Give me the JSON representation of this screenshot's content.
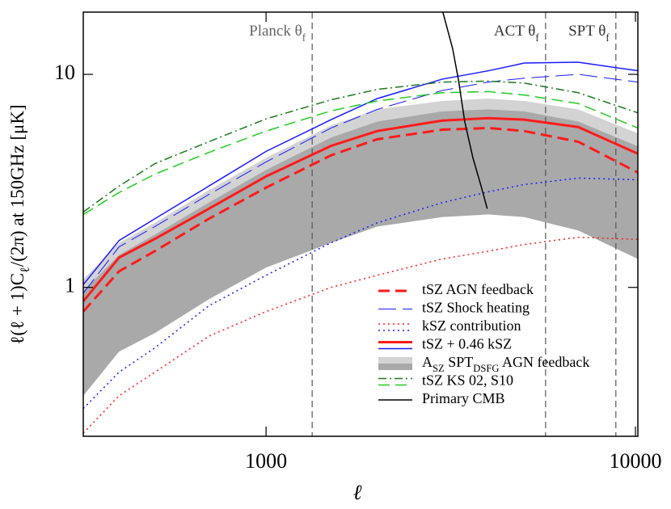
{
  "chart_data": {
    "type": "line",
    "log_x": true,
    "log_y": true,
    "xlim": [
      320,
      10150
    ],
    "ylim": [
      0.2,
      19.6
    ],
    "xticks": [
      1000,
      10000
    ],
    "yticks": [
      1,
      10
    ],
    "x_label": "ℓ",
    "y_label": [
      {
        "text": "ℓ(ℓ + 1)C"
      },
      {
        "text": "ℓ",
        "sub": true
      },
      {
        "text": "/(2π) at 150GHz [μK]"
      }
    ],
    "x": [
      320,
      400,
      500,
      700,
      1000,
      1500,
      2000,
      3000,
      4000,
      5000,
      7000,
      10150
    ],
    "band": {
      "name": [
        {
          "text": "A"
        },
        {
          "text": "SZ",
          "sub": true
        },
        {
          "text": " SPT"
        },
        {
          "text": "DSFG",
          "sub": true
        },
        {
          "text": " AGN feedback"
        }
      ],
      "colors": [
        "#d3d3d3",
        "#a9a9a9"
      ],
      "light_upper": [
        1.09,
        1.62,
        2.01,
        2.86,
        4.06,
        5.76,
        6.85,
        7.5,
        7.7,
        7.5,
        6.85,
        5.28
      ],
      "dark_upper": [
        0.96,
        1.42,
        1.77,
        2.5,
        3.56,
        5.05,
        6.0,
        6.7,
        6.85,
        6.7,
        6.0,
        4.6
      ],
      "lower": [
        0.31,
        0.5,
        0.61,
        0.88,
        1.24,
        1.62,
        1.93,
        2.14,
        2.2,
        2.14,
        1.85,
        1.36
      ]
    },
    "series": [
      {
        "name": [
          {
            "text": "tSZ AGN feedback"
          }
        ],
        "lines": [
          {
            "color": "#ff1a1a",
            "style": "dashed",
            "width": 3,
            "values": [
              0.77,
              1.19,
              1.48,
              2.1,
              2.94,
              4.17,
              4.96,
              5.5,
              5.6,
              5.42,
              4.83,
              3.46
            ]
          }
        ]
      },
      {
        "name": [
          {
            "text": "tSZ Shock heating"
          }
        ],
        "lines": [
          {
            "color": "#1a1aff",
            "style": "longdash",
            "width": 1,
            "values": [
              0.94,
              1.55,
              1.93,
              2.73,
              3.88,
              5.6,
              6.85,
              8.4,
              9.2,
              9.6,
              10,
              9.2
            ]
          }
        ]
      },
      {
        "name": [
          {
            "text": "kSZ contribution"
          }
        ],
        "lines": [
          {
            "color": "#ff1a1a",
            "style": "dotted",
            "width": 1.5,
            "values": [
              0.207,
              0.31,
              0.4,
              0.59,
              0.77,
              1.0,
              1.14,
              1.36,
              1.48,
              1.59,
              1.72,
              1.68
            ]
          },
          {
            "color": "#1a1aff",
            "style": "dotted",
            "width": 1.5,
            "values": [
              0.27,
              0.4,
              0.52,
              0.82,
              1.14,
              1.62,
              2.01,
              2.5,
              2.81,
              3.04,
              3.26,
              3.2
            ]
          }
        ]
      },
      {
        "name": [
          {
            "text": "tSZ + 0.46 kSZ"
          }
        ],
        "lines": [
          {
            "color": "#ff1a1a",
            "style": "solid",
            "width": 3,
            "values": [
              0.86,
              1.38,
              1.69,
              2.34,
              3.32,
              4.62,
              5.42,
              6.07,
              6.23,
              6.13,
              5.66,
              4.24
            ]
          },
          {
            "color": "#1a1aff",
            "style": "solid",
            "width": 1.5,
            "values": [
              1.03,
              1.66,
              2.1,
              2.99,
              4.35,
              6.13,
              7.7,
              9.5,
              10.4,
              11.3,
              11.4,
              10.4
            ]
          }
        ]
      },
      {
        "band": true
      },
      {
        "name": [
          {
            "text": "tSZ KS 02, S10"
          }
        ],
        "lines": [
          {
            "color": "#1a7a1a",
            "style": "dashdot",
            "width": 1.5,
            "values": [
              2.26,
              2.99,
              3.81,
              4.83,
              6.18,
              7.6,
              8.5,
              9.2,
              9.3,
              9.1,
              8.2,
              6.6
            ]
          },
          {
            "color": "#22cc22",
            "style": "dashed",
            "width": 1.5,
            "values": [
              2.2,
              2.79,
              3.4,
              4.3,
              5.42,
              6.74,
              7.5,
              8.2,
              8.3,
              8.0,
              7.3,
              5.6
            ]
          }
        ]
      },
      {
        "name": [
          {
            "text": "Primary CMB"
          }
        ],
        "lines": [
          {
            "color": "#000000",
            "style": "solid",
            "width": 1.5,
            "x": [
              3010,
              3200,
              3320,
              3450,
              3630,
              3820,
              3970
            ],
            "values": [
              19.6,
              13.2,
              9.35,
              6.0,
              4.06,
              2.99,
              2.34
            ]
          }
        ]
      }
    ],
    "annotations": [
      {
        "text": "Planck θ",
        "sub": "f",
        "x": 1333,
        "color": "#666666"
      },
      {
        "text": "ACT θ",
        "sub": "f",
        "x": 5710,
        "color": "#333333"
      },
      {
        "text": "SPT θ",
        "sub": "f",
        "x": 8850,
        "color": "#333333"
      }
    ]
  }
}
